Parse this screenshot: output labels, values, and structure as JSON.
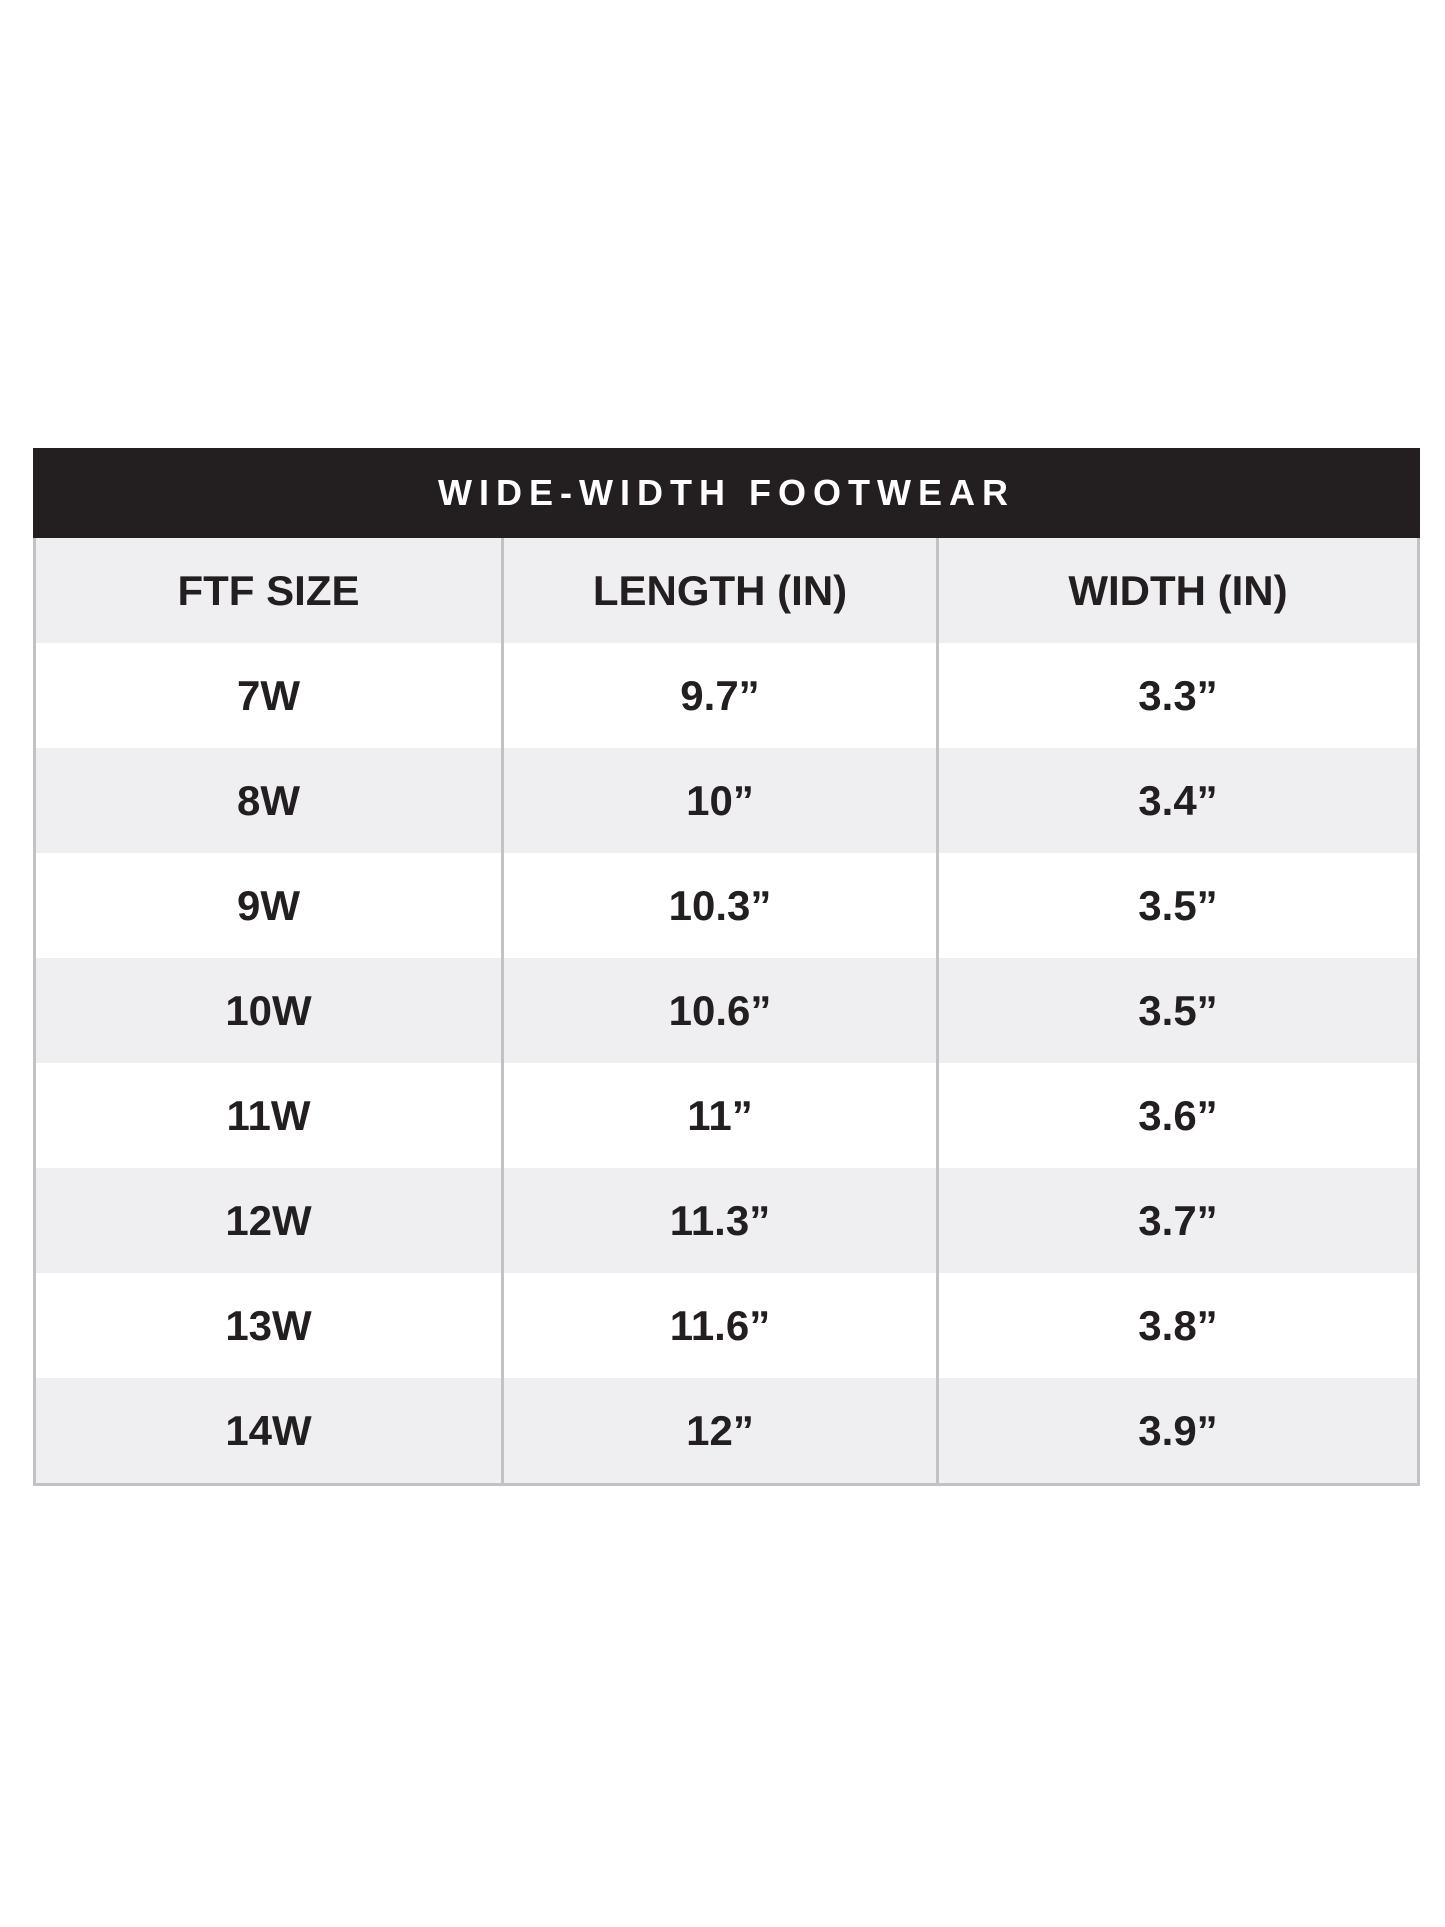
{
  "title": "WIDE-WIDTH FOOTWEAR",
  "columns": [
    "FTF SIZE",
    "LENGTH (IN)",
    "WIDTH (IN)"
  ],
  "rows": [
    [
      "7W",
      "9.7”",
      "3.3”"
    ],
    [
      "8W",
      "10”",
      "3.4”"
    ],
    [
      "9W",
      "10.3”",
      "3.5”"
    ],
    [
      "10W",
      "10.6”",
      "3.5”"
    ],
    [
      "11W",
      "11”",
      "3.6”"
    ],
    [
      "12W",
      "11.3”",
      "3.7”"
    ],
    [
      "13W",
      "11.6”",
      "3.8”"
    ],
    [
      "14W",
      "12”",
      "3.9”"
    ]
  ],
  "colors": {
    "header_bg": "#231f20",
    "stripe": "#efeff1",
    "border": "#c2c2c4"
  }
}
